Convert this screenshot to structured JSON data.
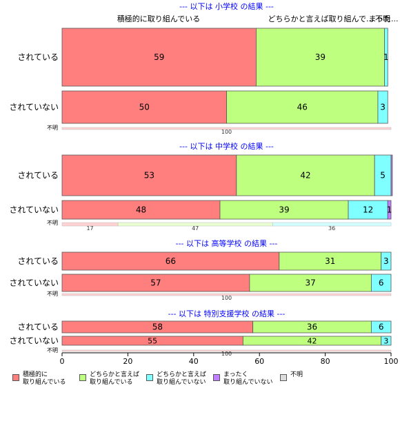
{
  "chart_data": {
    "type": "bar",
    "orientation": "horizontal",
    "stacked": true,
    "xlim": [
      0,
      100
    ],
    "x_ticks": [
      "0",
      "20",
      "40",
      "60",
      "80",
      "100"
    ],
    "series_names": [
      "積極的に取り組んでいる",
      "どちらかと言えば取り組んでいる",
      "どちらかと言えば取り組んでいない",
      "まったく取り組んでいない",
      "不明"
    ],
    "colors": [
      "#ff7f7f",
      "#bfff7f",
      "#7fffff",
      "#bf7fff",
      "#dcdcdc"
    ],
    "top_labels": [
      "積極的に取り組んでいる",
      "どちらかと言えば取り組んで...",
      "まった...",
      "不明"
    ],
    "panels": [
      {
        "title": "--- 以下は 小学校 の結果 ---",
        "rows": [
          {
            "label": "されている",
            "values": [
              59,
              39,
              1,
              0,
              0
            ],
            "value_labels": [
              "59",
              "39",
              "1",
              "",
              ""
            ]
          },
          {
            "label": "されていない",
            "values": [
              50,
              46,
              3,
              0,
              0
            ],
            "value_labels": [
              "50",
              "46",
              "3",
              "",
              ""
            ]
          },
          {
            "label": "不明",
            "values": [
              100,
              0,
              0,
              0,
              0
            ],
            "value_labels": [
              "100",
              "",
              "",
              "",
              ""
            ]
          }
        ]
      },
      {
        "title": "--- 以下は 中学校 の結果 ---",
        "rows": [
          {
            "label": "されている",
            "values": [
              53,
              42,
              5,
              0.4,
              0
            ],
            "value_labels": [
              "53",
              "42",
              "5",
              "",
              ""
            ]
          },
          {
            "label": "されていない",
            "values": [
              48,
              39,
              12,
              1,
              0
            ],
            "value_labels": [
              "48",
              "39",
              "12",
              "1",
              ""
            ]
          },
          {
            "label": "不明",
            "values": [
              17,
              47,
              36,
              0,
              0
            ],
            "value_labels": [
              "17",
              "47",
              "36",
              "",
              ""
            ]
          }
        ]
      },
      {
        "title": "--- 以下は 高等学校 の結果 ---",
        "rows": [
          {
            "label": "されている",
            "values": [
              66,
              31,
              3,
              0,
              0
            ],
            "value_labels": [
              "66",
              "31",
              "3",
              "",
              ""
            ]
          },
          {
            "label": "されていない",
            "values": [
              57,
              37,
              6,
              0,
              0
            ],
            "value_labels": [
              "57",
              "37",
              "6",
              "",
              ""
            ]
          },
          {
            "label": "不明",
            "values": [
              100,
              0,
              0,
              0,
              0
            ],
            "value_labels": [
              "100",
              "",
              "",
              "",
              ""
            ]
          }
        ]
      },
      {
        "title": "--- 以下は 特別支援学校 の結果 ---",
        "rows": [
          {
            "label": "されている",
            "values": [
              58,
              36,
              6,
              0,
              0
            ],
            "value_labels": [
              "58",
              "36",
              "6",
              "",
              ""
            ]
          },
          {
            "label": "されていない",
            "values": [
              55,
              42,
              3,
              0,
              0
            ],
            "value_labels": [
              "55",
              "42",
              "3",
              "",
              ""
            ]
          },
          {
            "label": "不明",
            "values": [
              100,
              0,
              0,
              0,
              0
            ],
            "value_labels": [
              "100",
              "",
              "",
              "",
              ""
            ]
          }
        ]
      }
    ],
    "legend": [
      {
        "label": "積極的に\n取り組んでいる",
        "color": "#ff7f7f"
      },
      {
        "label": "どちらかと言えば\n取り組んでいる",
        "color": "#bfff7f"
      },
      {
        "label": "どちらかと言えば\n取り組んでいない",
        "color": "#7fffff"
      },
      {
        "label": "まったく\n取り組んでいない",
        "color": "#bf7fff"
      },
      {
        "label": "不明",
        "color": "#dcdcdc"
      }
    ]
  }
}
